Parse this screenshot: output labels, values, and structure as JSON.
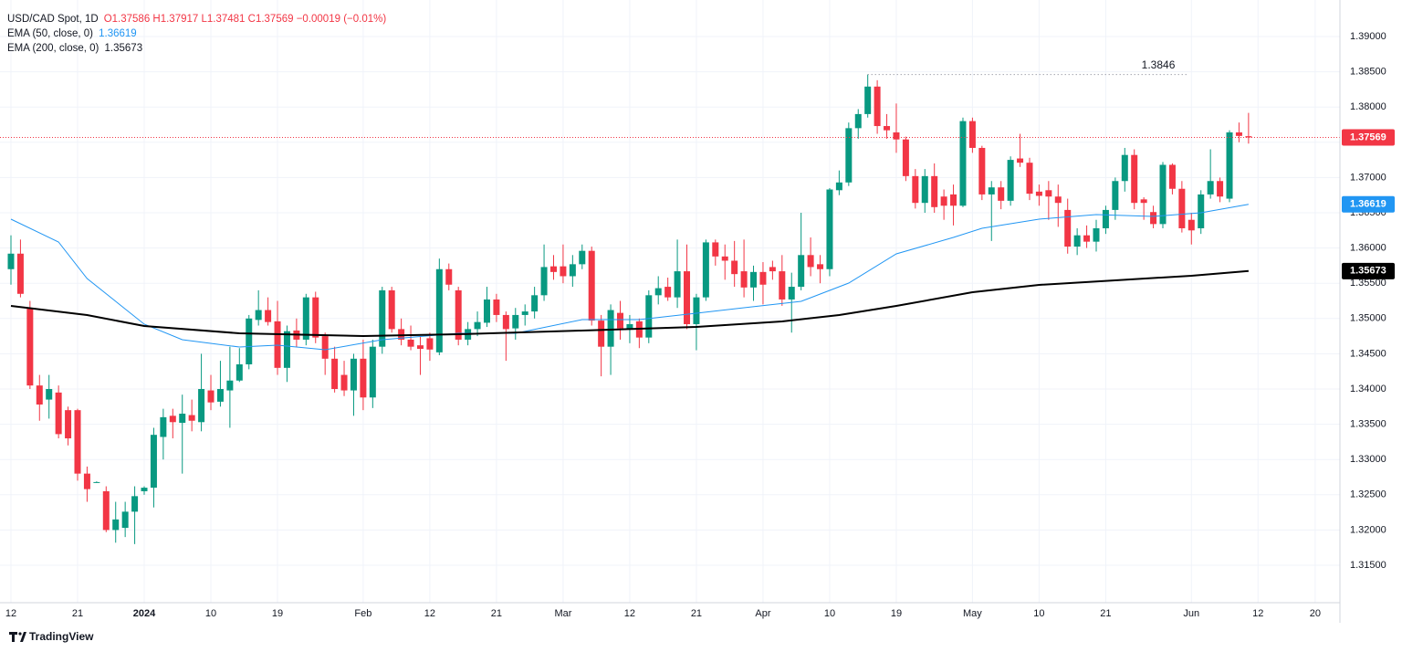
{
  "header": {
    "symbol": "USD/CAD Spot, 1D",
    "ohlc": "O1.37586 H1.37917 L1.37481 C1.37569 −0.00019 (−0.01%)"
  },
  "branding": "TradingView",
  "chart_data": {
    "type": "candlestick",
    "up_color": "#089981",
    "down_color": "#f23645",
    "grid": true,
    "xlim": [
      -1.15,
      139.6
    ],
    "xticks": [
      {
        "value": 0,
        "label": "12"
      },
      {
        "value": 7,
        "label": "21"
      },
      {
        "value": 14,
        "label": "2024"
      },
      {
        "value": 21,
        "label": "10"
      },
      {
        "value": 28,
        "label": "19"
      },
      {
        "value": 37,
        "label": "Feb"
      },
      {
        "value": 44,
        "label": "12"
      },
      {
        "value": 51,
        "label": "21"
      },
      {
        "value": 58,
        "label": "Mar"
      },
      {
        "value": 65,
        "label": "12"
      },
      {
        "value": 72,
        "label": "21"
      },
      {
        "value": 79,
        "label": "Apr"
      },
      {
        "value": 86,
        "label": "10"
      },
      {
        "value": 93,
        "label": "19"
      },
      {
        "value": 101,
        "label": "May"
      },
      {
        "value": 108,
        "label": "10"
      },
      {
        "value": 115,
        "label": "21"
      },
      {
        "value": 124,
        "label": "Jun"
      },
      {
        "value": 131,
        "label": "12"
      },
      {
        "value": 137,
        "label": "20"
      }
    ],
    "ylim": [
      1.30969,
      1.39518
    ],
    "yticks": [
      {
        "value": 1.315,
        "label": "1.31500"
      },
      {
        "value": 1.32,
        "label": "1.32000"
      },
      {
        "value": 1.325,
        "label": "1.32500"
      },
      {
        "value": 1.33,
        "label": "1.33000"
      },
      {
        "value": 1.335,
        "label": "1.33500"
      },
      {
        "value": 1.34,
        "label": "1.34000"
      },
      {
        "value": 1.345,
        "label": "1.34500"
      },
      {
        "value": 1.35,
        "label": "1.35000"
      },
      {
        "value": 1.355,
        "label": "1.35500"
      },
      {
        "value": 1.36,
        "label": "1.36000"
      },
      {
        "value": 1.365,
        "label": "1.36500"
      },
      {
        "value": 1.37,
        "label": "1.37000"
      },
      {
        "value": 1.375,
        "label": "1.37500"
      },
      {
        "value": 1.38,
        "label": "1.38000"
      },
      {
        "value": 1.385,
        "label": "1.38500"
      },
      {
        "value": 1.39,
        "label": "1.39000"
      }
    ],
    "open": [
      1.357,
      1.3592,
      1.3514,
      1.3405,
      1.3385,
      1.3395,
      1.337,
      1.337,
      1.328,
      1.3268,
      1.3255,
      1.32,
      1.3203,
      1.3226,
      1.3255,
      1.326,
      1.3332,
      1.3362,
      1.3352,
      1.3363,
      1.3353,
      1.3398,
      1.3382,
      1.3398,
      1.3412,
      1.3435,
      1.3498,
      1.3512,
      1.3496,
      1.343,
      1.3483,
      1.347,
      1.353,
      1.3475,
      1.3443,
      1.342,
      1.3398,
      1.3443,
      1.3388,
      1.346,
      1.354,
      1.3485,
      1.347,
      1.3462,
      1.3472,
      1.3452,
      1.357,
      1.354,
      1.347,
      1.3485,
      1.3494,
      1.3527,
      1.3505,
      1.3486,
      1.3505,
      1.351,
      1.3533,
      1.3574,
      1.3574,
      1.356,
      1.3577,
      1.3596,
      1.3497,
      1.346,
      1.3508,
      1.3485,
      1.3496,
      1.3473,
      1.3533,
      1.3545,
      1.353,
      1.3567,
      1.3492,
      1.353,
      1.3608,
      1.3588,
      1.3582,
      1.3567,
      1.3544,
      1.3566,
      1.3573,
      1.3567,
      1.3527,
      1.3545,
      1.359,
      1.3577,
      1.357,
      1.3682,
      1.3693,
      1.377,
      1.379,
      1.3829,
      1.3773,
      1.3764,
      1.3754,
      1.3702,
      1.3664,
      1.3702,
      1.3673,
      1.3676,
      1.366,
      1.378,
      1.3742,
      1.3676,
      1.3686,
      1.3667,
      1.3727,
      1.3721,
      1.368,
      1.3682,
      1.3673,
      1.3654,
      1.3602,
      1.3618,
      1.3609,
      1.3628,
      1.3654,
      1.3695,
      1.3732,
      1.3669,
      1.3651,
      1.3634,
      1.3718,
      1.3684,
      1.364,
      1.3628,
      1.3676,
      1.3695,
      1.367,
      1.3764,
      1.37586
    ],
    "high": [
      1.3618,
      1.3612,
      1.3525,
      1.342,
      1.342,
      1.3405,
      1.3375,
      1.3372,
      1.329,
      1.3269,
      1.3262,
      1.324,
      1.324,
      1.3262,
      1.3262,
      1.3345,
      1.3372,
      1.3372,
      1.3392,
      1.3385,
      1.345,
      1.342,
      1.344,
      1.346,
      1.3458,
      1.3505,
      1.354,
      1.353,
      1.3525,
      1.349,
      1.35,
      1.3535,
      1.3538,
      1.348,
      1.346,
      1.344,
      1.345,
      1.347,
      1.347,
      1.3545,
      1.3545,
      1.35,
      1.349,
      1.3475,
      1.348,
      1.3585,
      1.3578,
      1.3545,
      1.3495,
      1.351,
      1.3545,
      1.3535,
      1.351,
      1.3515,
      1.352,
      1.3545,
      1.3605,
      1.359,
      1.3605,
      1.359,
      1.3605,
      1.3602,
      1.3505,
      1.352,
      1.3525,
      1.3505,
      1.35,
      1.354,
      1.356,
      1.3558,
      1.3612,
      1.3605,
      1.3535,
      1.3612,
      1.3612,
      1.3605,
      1.361,
      1.3612,
      1.3575,
      1.358,
      1.3582,
      1.359,
      1.3565,
      1.365,
      1.3615,
      1.359,
      1.3685,
      1.371,
      1.3778,
      1.3797,
      1.3846,
      1.3838,
      1.379,
      1.3805,
      1.3758,
      1.3712,
      1.3712,
      1.372,
      1.3683,
      1.369,
      1.3785,
      1.3785,
      1.3745,
      1.3695,
      1.3695,
      1.373,
      1.3762,
      1.3728,
      1.369,
      1.3695,
      1.369,
      1.367,
      1.3628,
      1.3632,
      1.364,
      1.366,
      1.37,
      1.3742,
      1.374,
      1.3672,
      1.366,
      1.3722,
      1.372,
      1.3695,
      1.365,
      1.3682,
      1.374,
      1.37,
      1.3767,
      1.3778,
      1.37917
    ],
    "low": [
      1.3548,
      1.353,
      1.34,
      1.3355,
      1.3358,
      1.333,
      1.332,
      1.327,
      1.324,
      1.3267,
      1.3197,
      1.3182,
      1.319,
      1.318,
      1.325,
      1.3232,
      1.33,
      1.333,
      1.328,
      1.334,
      1.334,
      1.337,
      1.3375,
      1.3345,
      1.341,
      1.3428,
      1.349,
      1.349,
      1.342,
      1.341,
      1.346,
      1.3462,
      1.3465,
      1.342,
      1.3395,
      1.339,
      1.3362,
      1.337,
      1.3373,
      1.345,
      1.348,
      1.3462,
      1.3455,
      1.342,
      1.344,
      1.3448,
      1.354,
      1.3462,
      1.3462,
      1.3475,
      1.3488,
      1.3495,
      1.344,
      1.347,
      1.349,
      1.35,
      1.3525,
      1.3555,
      1.355,
      1.3545,
      1.357,
      1.349,
      1.3418,
      1.342,
      1.347,
      1.3465,
      1.3458,
      1.3465,
      1.352,
      1.3525,
      1.3515,
      1.3485,
      1.3455,
      1.3525,
      1.3575,
      1.3555,
      1.3545,
      1.353,
      1.3525,
      1.352,
      1.3555,
      1.3518,
      1.348,
      1.354,
      1.356,
      1.355,
      1.356,
      1.3675,
      1.3688,
      1.3755,
      1.3785,
      1.3762,
      1.3755,
      1.3735,
      1.3695,
      1.3656,
      1.365,
      1.365,
      1.364,
      1.3632,
      1.3658,
      1.3735,
      1.3668,
      1.361,
      1.3655,
      1.366,
      1.3715,
      1.3668,
      1.366,
      1.364,
      1.363,
      1.3592,
      1.359,
      1.36,
      1.3595,
      1.362,
      1.364,
      1.368,
      1.3655,
      1.364,
      1.3628,
      1.3628,
      1.3676,
      1.3622,
      1.3605,
      1.362,
      1.367,
      1.3665,
      1.3665,
      1.375,
      1.37481
    ],
    "close": [
      1.3592,
      1.3535,
      1.3405,
      1.3378,
      1.34,
      1.3336,
      1.333,
      1.328,
      1.3258,
      1.3268,
      1.32,
      1.3215,
      1.3226,
      1.3248,
      1.326,
      1.3335,
      1.336,
      1.3353,
      1.3365,
      1.3355,
      1.34,
      1.3381,
      1.34,
      1.3412,
      1.3435,
      1.35,
      1.3512,
      1.3495,
      1.343,
      1.3482,
      1.347,
      1.353,
      1.3473,
      1.3443,
      1.34,
      1.3398,
      1.3443,
      1.3388,
      1.346,
      1.354,
      1.3485,
      1.347,
      1.346,
      1.3457,
      1.3456,
      1.357,
      1.3548,
      1.347,
      1.3485,
      1.3495,
      1.3527,
      1.3505,
      1.3485,
      1.3505,
      1.351,
      1.3533,
      1.3573,
      1.3566,
      1.356,
      1.3577,
      1.3596,
      1.3497,
      1.346,
      1.3512,
      1.3486,
      1.3492,
      1.3473,
      1.3533,
      1.3543,
      1.353,
      1.3567,
      1.3492,
      1.353,
      1.3608,
      1.3588,
      1.3582,
      1.3563,
      1.3544,
      1.3566,
      1.3548,
      1.3567,
      1.3527,
      1.3545,
      1.359,
      1.3573,
      1.357,
      1.3683,
      1.3693,
      1.377,
      1.379,
      1.3829,
      1.3773,
      1.3767,
      1.3754,
      1.3702,
      1.3664,
      1.3702,
      1.3658,
      1.366,
      1.366,
      1.378,
      1.3742,
      1.3676,
      1.3686,
      1.3667,
      1.3725,
      1.3721,
      1.3677,
      1.3674,
      1.3673,
      1.3664,
      1.3602,
      1.3618,
      1.3609,
      1.3628,
      1.3654,
      1.3695,
      1.3732,
      1.3664,
      1.3664,
      1.3634,
      1.3718,
      1.3684,
      1.3628,
      1.3625,
      1.3676,
      1.3695,
      1.3673,
      1.3764,
      1.3759,
      1.37569
    ],
    "last_price": {
      "value": 1.37569,
      "label": "1.37569",
      "color": "#f23645"
    },
    "high_marker": {
      "value": 1.3846,
      "label": "1.3846",
      "from": 90
    },
    "series": [
      {
        "name": "EMA (50, close, 0)",
        "color": "#2196f3",
        "last": {
          "value": 1.36619,
          "label": "1.36619"
        },
        "x": [
          0,
          5,
          8,
          14,
          18,
          24,
          28,
          33,
          39,
          47,
          53,
          60,
          66,
          72,
          77,
          83,
          88,
          93,
          99,
          102,
          108,
          114,
          120,
          125,
          130
        ],
        "values": [
          1.36409,
          1.36085,
          1.35567,
          1.3492,
          1.347,
          1.34596,
          1.34622,
          1.34557,
          1.347,
          1.3479,
          1.3479,
          1.34984,
          1.34984,
          1.35075,
          1.35153,
          1.35244,
          1.35503,
          1.35917,
          1.3615,
          1.3628,
          1.36409,
          1.36474,
          1.36448,
          1.365,
          1.36619
        ]
      },
      {
        "name": "EMA (200, close, 0)",
        "color": "#000000",
        "last": {
          "value": 1.35673,
          "label": "1.35673"
        },
        "x": [
          0,
          8,
          14,
          24,
          37,
          47,
          60,
          72,
          81,
          87,
          93,
          101,
          108,
          116,
          124,
          130
        ],
        "values": [
          1.35179,
          1.35049,
          1.34894,
          1.3479,
          1.34751,
          1.34777,
          1.34829,
          1.34881,
          1.34959,
          1.35049,
          1.35179,
          1.35373,
          1.35477,
          1.35541,
          1.35606,
          1.35673
        ]
      }
    ]
  }
}
